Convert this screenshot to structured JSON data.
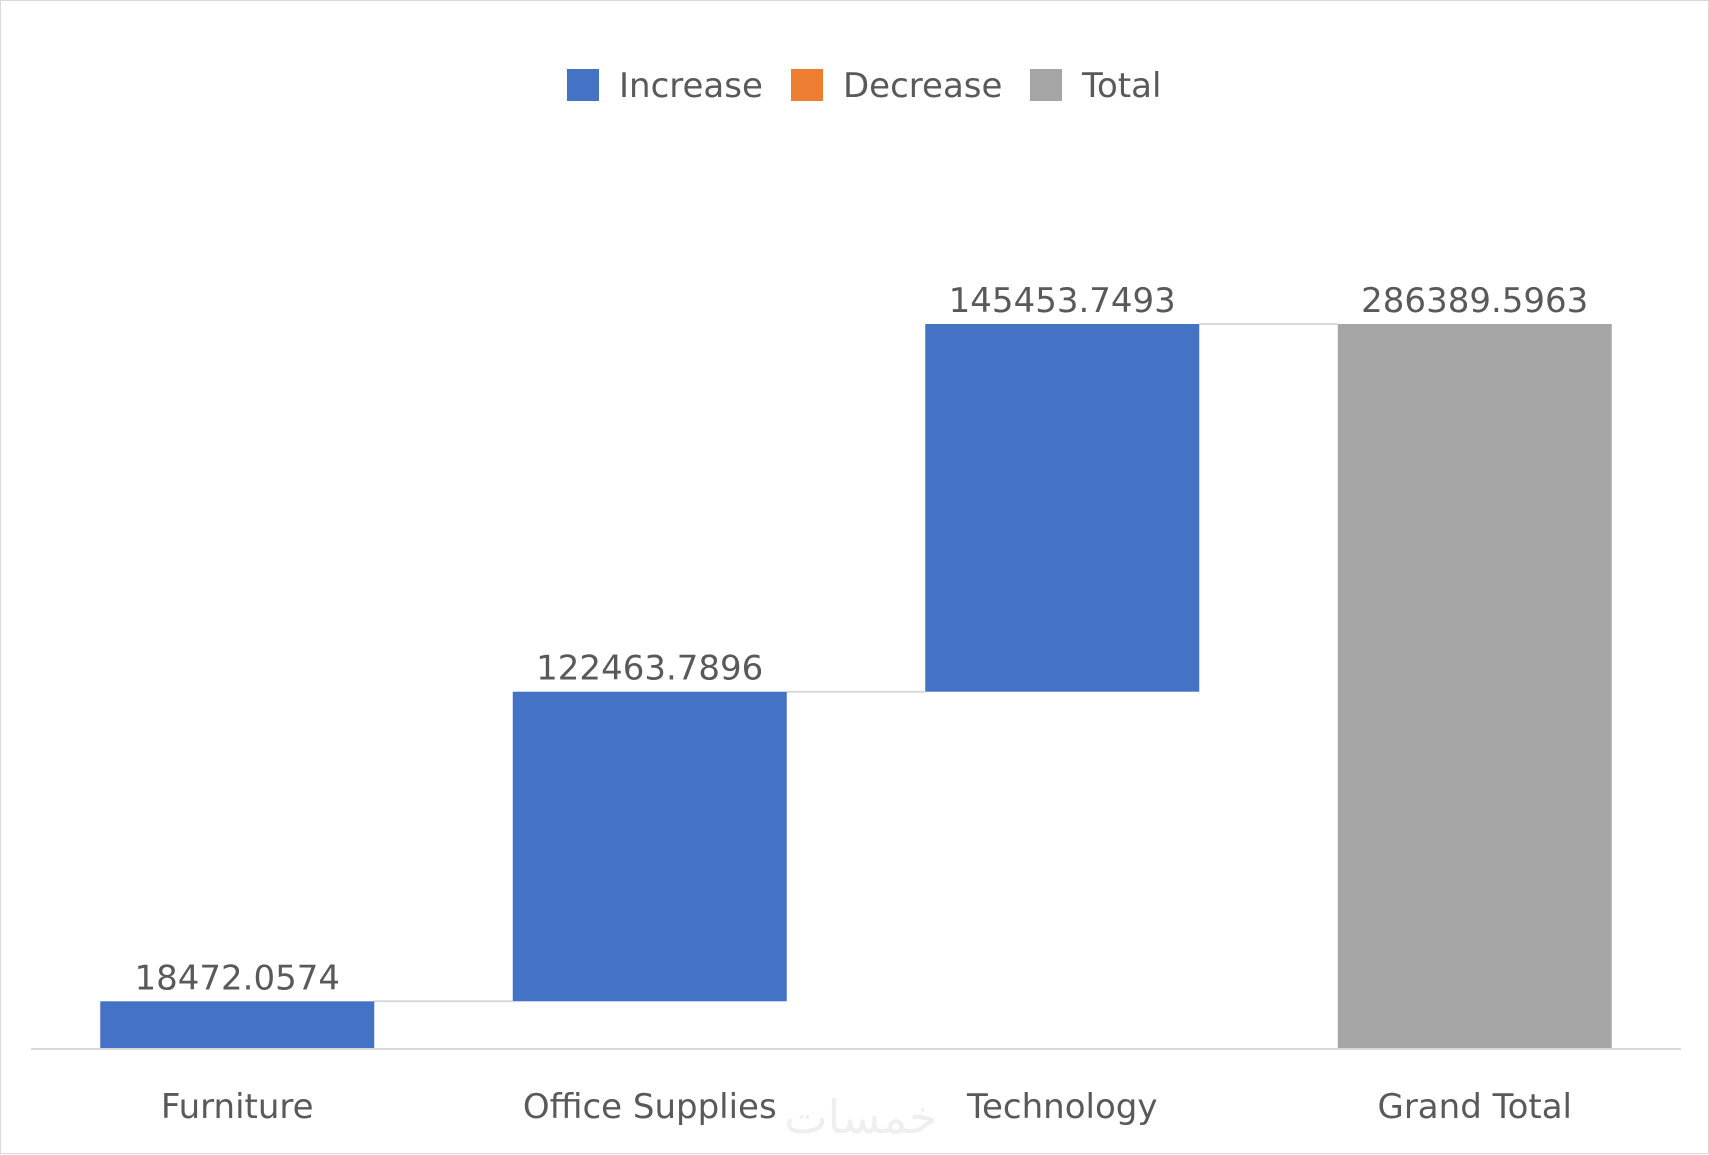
{
  "chart_data": {
    "type": "waterfall",
    "title": "",
    "xlabel": "",
    "ylabel": "",
    "categories": [
      "Furniture",
      "Office Supplies",
      "Technology",
      "Grand Total"
    ],
    "values": [
      18472.0574,
      122463.7896,
      145453.7493,
      286389.5963
    ],
    "value_labels": [
      "18472.0574",
      "122463.7896",
      "145453.7493",
      "286389.5963"
    ],
    "kinds": [
      "increase",
      "increase",
      "increase",
      "total"
    ],
    "ylim": [
      0,
      286389.5963
    ],
    "grid": false,
    "legend_position": "top-center",
    "legend": [
      {
        "label": "Increase",
        "color": "#4472C4"
      },
      {
        "label": "Decrease",
        "color": "#ED7D31"
      },
      {
        "label": "Total",
        "color": "#A5A5A5"
      }
    ],
    "connector_color": "#D9D9D9",
    "axis_color": "#D9D9D9"
  },
  "watermark": "خمسات"
}
